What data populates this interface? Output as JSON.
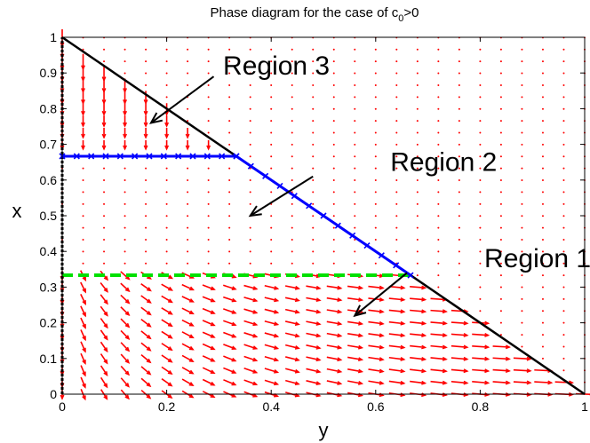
{
  "chart_data": {
    "type": "quiver",
    "title": "Phase diagram for the case of c",
    "title_sub": "0",
    "title_suffix": ">0",
    "xlabel": "y",
    "ylabel": "x",
    "xlim": [
      0,
      1
    ],
    "ylim": [
      0,
      1
    ],
    "xticks": [
      "0",
      "0.2",
      "0.4",
      "0.6",
      "0.8",
      "1"
    ],
    "xtick_values": [
      0,
      0.2,
      0.4,
      0.6,
      0.8,
      1
    ],
    "yticks": [
      "0",
      "0.1",
      "0.2",
      "0.3",
      "0.4",
      "0.5",
      "0.6",
      "0.7",
      "0.8",
      "0.9",
      "1"
    ],
    "ytick_values": [
      0,
      0.1,
      0.2,
      0.3,
      0.4,
      0.5,
      0.6,
      0.7,
      0.8,
      0.9,
      1
    ],
    "grid": false,
    "vector_field": {
      "color": "#ff0000",
      "grid_step_y": 0.04,
      "grid_step_x": 0.0333
    },
    "boundary_line": {
      "color": "#000000",
      "points": [
        [
          0,
          1
        ],
        [
          1,
          0
        ]
      ]
    },
    "left_axis_line": {
      "color": "#000000",
      "points": [
        [
          0,
          0
        ],
        [
          0,
          1
        ]
      ]
    },
    "blue_curve": {
      "color": "#0000ff",
      "points": [
        [
          0,
          0.6667
        ],
        [
          0.3333,
          0.6667
        ],
        [
          0.6667,
          0.3333
        ]
      ]
    },
    "green_line": {
      "color": "#00e000",
      "points": [
        [
          0,
          0.3333
        ],
        [
          0.6667,
          0.3333
        ]
      ]
    },
    "annotations": [
      {
        "text": "Region 3",
        "text_at": [
          0.41,
          0.92
        ],
        "arrow_from": [
          0.29,
          0.89
        ],
        "arrow_to": [
          0.17,
          0.76
        ]
      },
      {
        "text": "Region 2",
        "text_at": [
          0.73,
          0.65
        ],
        "arrow_from": [
          0.48,
          0.61
        ],
        "arrow_to": [
          0.36,
          0.5
        ]
      },
      {
        "text": "Region 1",
        "text_at": [
          0.91,
          0.38
        ],
        "arrow_from": [
          0.66,
          0.34
        ],
        "arrow_to": [
          0.56,
          0.22
        ]
      }
    ]
  }
}
